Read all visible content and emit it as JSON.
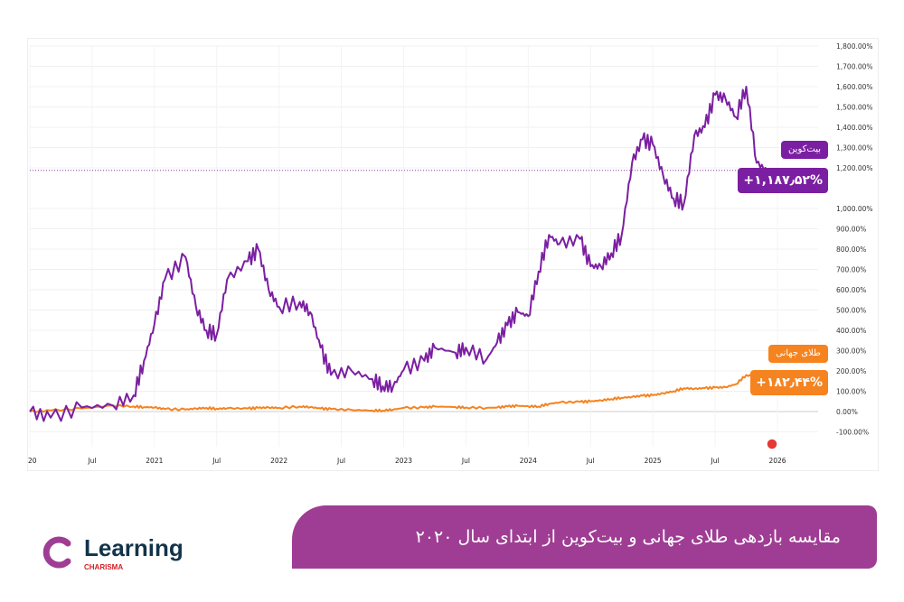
{
  "chart_data": {
    "type": "line",
    "title": "مقایسه بازدهی طلای جهانی و بیت‌کوین از ابتدای سال ۲۰۲۰",
    "x_ticks": [
      "20",
      "Jul",
      "2021",
      "Jul",
      "2022",
      "Jul",
      "2023",
      "Jul",
      "2024",
      "Jul",
      "2025",
      "Jul",
      "2026"
    ],
    "y_ticks": [
      "1,800.00%",
      "1,700.00%",
      "1,600.00%",
      "1,500.00%",
      "1,400.00%",
      "1,300.00%",
      "1,200.00%",
      "1,000.00%",
      "900.00%",
      "800.00%",
      "700.00%",
      "600.00%",
      "500.00%",
      "400.00%",
      "300.00%",
      "200.00%",
      "100.00%",
      "0.00%",
      "-100.00%"
    ],
    "ylim": [
      -100,
      1800
    ],
    "xlim": [
      "2020-01",
      "2026-01"
    ],
    "grid": true,
    "x": [
      "2020-01",
      "2020-03",
      "2020-06",
      "2020-09",
      "2020-11",
      "2020-12",
      "2021-01",
      "2021-02",
      "2021-04",
      "2021-05",
      "2021-06",
      "2021-07",
      "2021-08",
      "2021-10",
      "2021-11",
      "2021-12",
      "2022-01",
      "2022-03",
      "2022-04",
      "2022-05",
      "2022-06",
      "2022-08",
      "2022-10",
      "2022-11",
      "2022-12",
      "2023-01",
      "2023-03",
      "2023-04",
      "2023-06",
      "2023-07",
      "2023-09",
      "2023-10",
      "2023-11",
      "2023-12",
      "2024-01",
      "2024-02",
      "2024-03",
      "2024-04",
      "2024-06",
      "2024-07",
      "2024-08",
      "2024-09",
      "2024-10",
      "2024-11",
      "2024-12",
      "2025-01",
      "2025-02",
      "2025-03",
      "2025-04",
      "2025-05",
      "2025-06",
      "2025-07",
      "2025-08",
      "2025-09",
      "2025-10",
      "2025-11",
      "2025-12"
    ],
    "series": [
      {
        "name": "بیت‌کوین",
        "color": "#7b1fa2",
        "last_label": "+۱,۱۸۷٫۵۲%",
        "values": [
          0,
          -30,
          20,
          30,
          80,
          250,
          430,
          650,
          760,
          515,
          400,
          380,
          650,
          740,
          800,
          600,
          515,
          540,
          490,
          315,
          180,
          200,
          160,
          125,
          125,
          205,
          250,
          315,
          290,
          315,
          258,
          340,
          425,
          490,
          470,
          690,
          870,
          825,
          850,
          715,
          715,
          780,
          870,
          1225,
          1340,
          1315,
          1160,
          1050,
          1025,
          1360,
          1400,
          1560,
          1540,
          1450,
          1600,
          1225,
          1187.52
        ]
      },
      {
        "name": "طلای جهانی",
        "color": "#f5831f",
        "last_label": "+۱۸۲٫۴۴%",
        "values": [
          0,
          5,
          15,
          30,
          25,
          22,
          20,
          12,
          10,
          15,
          18,
          14,
          16,
          15,
          18,
          20,
          18,
          25,
          22,
          15,
          12,
          8,
          5,
          5,
          10,
          18,
          20,
          25,
          22,
          20,
          18,
          20,
          25,
          28,
          26,
          25,
          38,
          45,
          48,
          50,
          55,
          62,
          68,
          72,
          78,
          80,
          90,
          100,
          115,
          112,
          115,
          118,
          120,
          135,
          180,
          170,
          182.44
        ]
      }
    ]
  },
  "banner": {
    "title": "مقایسه بازدهی طلای جهانی و بیت‌کوین از ابتدای سال ۲۰۲۰"
  },
  "logo": {
    "word": "Learning",
    "sub": "CHARISMA"
  }
}
